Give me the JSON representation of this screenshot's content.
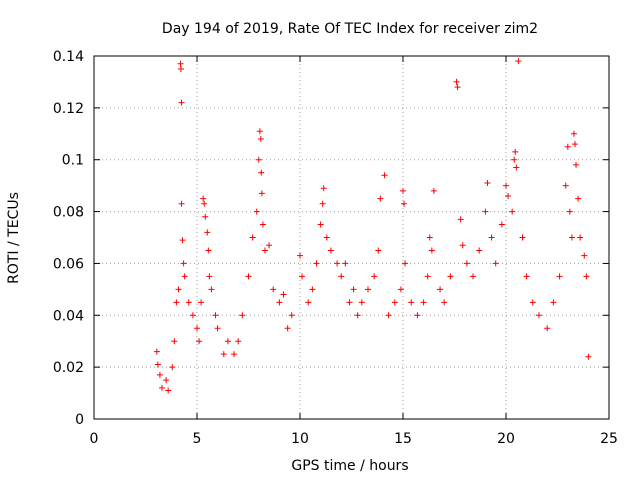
{
  "chart_data": {
    "type": "scatter",
    "title": "Day 194 of 2019, Rate Of TEC Index for receiver zim2",
    "xlabel": "GPS time / hours",
    "ylabel": "ROTI / TECUs",
    "xlim": [
      0,
      25
    ],
    "ylim": [
      0,
      0.14
    ],
    "x_ticks": [
      "0",
      "5",
      "10",
      "15",
      "20",
      "25"
    ],
    "y_ticks": [
      "0",
      "0.02",
      "0.04",
      "0.06",
      "0.08",
      "0.1",
      "0.12",
      "0.14"
    ],
    "x_tick_values": [
      0,
      5,
      10,
      15,
      20,
      25
    ],
    "y_tick_values": [
      0,
      0.02,
      0.04,
      0.06,
      0.08,
      0.1,
      0.12,
      0.14
    ],
    "grid": true,
    "marker": "+",
    "color": "#ff0000",
    "series": [
      {
        "points": [
          [
            3.05,
            0.026
          ],
          [
            3.1,
            0.021
          ],
          [
            3.2,
            0.017
          ],
          [
            3.3,
            0.012
          ],
          [
            3.5,
            0.015
          ],
          [
            3.6,
            0.011
          ],
          [
            3.8,
            0.02
          ],
          [
            3.9,
            0.03
          ],
          [
            4.0,
            0.045
          ],
          [
            4.1,
            0.05
          ],
          [
            4.2,
            0.137
          ],
          [
            4.22,
            0.135
          ],
          [
            4.25,
            0.122
          ],
          [
            4.25,
            0.083
          ],
          [
            4.3,
            0.069
          ],
          [
            4.35,
            0.06
          ],
          [
            4.4,
            0.055
          ],
          [
            4.6,
            0.045
          ],
          [
            4.8,
            0.04
          ],
          [
            5.0,
            0.035
          ],
          [
            5.1,
            0.03
          ],
          [
            5.2,
            0.045
          ],
          [
            5.3,
            0.085
          ],
          [
            5.35,
            0.083
          ],
          [
            5.4,
            0.078
          ],
          [
            5.5,
            0.072
          ],
          [
            5.55,
            0.065
          ],
          [
            5.6,
            0.055
          ],
          [
            5.7,
            0.05
          ],
          [
            5.9,
            0.04
          ],
          [
            6.0,
            0.035
          ],
          [
            6.3,
            0.025
          ],
          [
            6.5,
            0.03
          ],
          [
            6.8,
            0.025
          ],
          [
            7.0,
            0.03
          ],
          [
            7.2,
            0.04
          ],
          [
            7.5,
            0.055
          ],
          [
            7.7,
            0.07
          ],
          [
            7.9,
            0.08
          ],
          [
            8.0,
            0.1
          ],
          [
            8.05,
            0.111
          ],
          [
            8.1,
            0.108
          ],
          [
            8.12,
            0.095
          ],
          [
            8.15,
            0.087
          ],
          [
            8.2,
            0.075
          ],
          [
            8.3,
            0.065
          ],
          [
            8.5,
            0.067
          ],
          [
            8.7,
            0.05
          ],
          [
            9.0,
            0.045
          ],
          [
            9.2,
            0.048
          ],
          [
            9.4,
            0.035
          ],
          [
            9.6,
            0.04
          ],
          [
            10.0,
            0.063
          ],
          [
            10.1,
            0.055
          ],
          [
            10.4,
            0.045
          ],
          [
            10.6,
            0.05
          ],
          [
            10.8,
            0.06
          ],
          [
            11.0,
            0.075
          ],
          [
            11.1,
            0.083
          ],
          [
            11.15,
            0.089
          ],
          [
            11.3,
            0.07
          ],
          [
            11.5,
            0.065
          ],
          [
            11.8,
            0.06
          ],
          [
            12.0,
            0.055
          ],
          [
            12.2,
            0.06
          ],
          [
            12.4,
            0.045
          ],
          [
            12.6,
            0.05
          ],
          [
            12.8,
            0.04
          ],
          [
            13.0,
            0.045
          ],
          [
            13.3,
            0.05
          ],
          [
            13.6,
            0.055
          ],
          [
            13.8,
            0.065
          ],
          [
            13.9,
            0.085
          ],
          [
            14.1,
            0.094
          ],
          [
            14.3,
            0.04
          ],
          [
            14.6,
            0.045
          ],
          [
            14.9,
            0.05
          ],
          [
            15.0,
            0.088
          ],
          [
            15.05,
            0.083
          ],
          [
            15.1,
            0.06
          ],
          [
            15.4,
            0.045
          ],
          [
            15.7,
            0.04
          ],
          [
            16.0,
            0.045
          ],
          [
            16.2,
            0.055
          ],
          [
            16.3,
            0.07
          ],
          [
            16.4,
            0.065
          ],
          [
            16.5,
            0.088
          ],
          [
            16.8,
            0.05
          ],
          [
            17.0,
            0.045
          ],
          [
            17.3,
            0.055
          ],
          [
            17.6,
            0.13
          ],
          [
            17.65,
            0.128
          ],
          [
            17.8,
            0.077
          ],
          [
            17.9,
            0.067
          ],
          [
            18.1,
            0.06
          ],
          [
            18.4,
            0.055
          ],
          [
            18.7,
            0.065
          ],
          [
            19.0,
            0.08
          ],
          [
            19.1,
            0.091
          ],
          [
            19.3,
            0.07
          ],
          [
            19.5,
            0.06
          ],
          [
            19.8,
            0.075
          ],
          [
            20.0,
            0.09
          ],
          [
            20.1,
            0.086
          ],
          [
            20.3,
            0.08
          ],
          [
            20.4,
            0.1
          ],
          [
            20.45,
            0.103
          ],
          [
            20.5,
            0.097
          ],
          [
            20.6,
            0.138
          ],
          [
            20.8,
            0.07
          ],
          [
            21.0,
            0.055
          ],
          [
            21.3,
            0.045
          ],
          [
            21.6,
            0.04
          ],
          [
            22.0,
            0.035
          ],
          [
            22.3,
            0.045
          ],
          [
            22.6,
            0.055
          ],
          [
            22.9,
            0.09
          ],
          [
            23.0,
            0.105
          ],
          [
            23.1,
            0.08
          ],
          [
            23.2,
            0.07
          ],
          [
            23.3,
            0.11
          ],
          [
            23.35,
            0.106
          ],
          [
            23.4,
            0.098
          ],
          [
            23.5,
            0.085
          ],
          [
            23.6,
            0.07
          ],
          [
            23.8,
            0.063
          ],
          [
            23.9,
            0.055
          ],
          [
            24.0,
            0.024
          ]
        ]
      }
    ]
  }
}
